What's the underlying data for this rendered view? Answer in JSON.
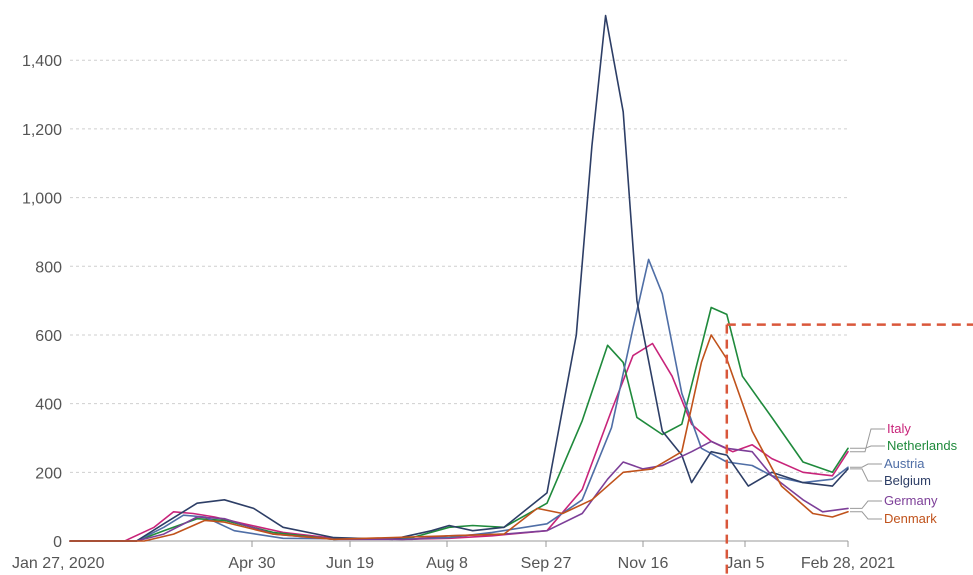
{
  "chart_data": {
    "type": "line",
    "title": "",
    "xlabel": "",
    "ylabel": "",
    "x_ticks": [
      "Jan 27, 2020",
      "Apr 30",
      "Jun 19",
      "Aug 8",
      "Sep 27",
      "Nov 16",
      "Jan 5",
      "Feb 28, 2021"
    ],
    "y_ticks": [
      "0",
      "200",
      "400",
      "600",
      "800",
      "1,000",
      "1,200",
      "1,400"
    ],
    "ylim": [
      0,
      1550
    ],
    "xlim": [
      "2020-01-27",
      "2021-02-28"
    ],
    "grid": true,
    "legend": "right",
    "reference_line": {
      "x": "2020-12-28",
      "y": 630,
      "color": "#d9573b",
      "style": "dashed"
    },
    "series": [
      {
        "name": "Italy",
        "color": "#c8247a",
        "points": [
          [
            "2020-01-27",
            0
          ],
          [
            "2020-02-24",
            0
          ],
          [
            "2020-03-10",
            40
          ],
          [
            "2020-03-20",
            85
          ],
          [
            "2020-03-30",
            80
          ],
          [
            "2020-04-10",
            70
          ],
          [
            "2020-04-25",
            50
          ],
          [
            "2020-05-15",
            25
          ],
          [
            "2020-06-10",
            8
          ],
          [
            "2020-07-15",
            5
          ],
          [
            "2020-08-08",
            8
          ],
          [
            "2020-08-30",
            15
          ],
          [
            "2020-09-27",
            30
          ],
          [
            "2020-10-15",
            150
          ],
          [
            "2020-10-30",
            380
          ],
          [
            "2020-11-10",
            540
          ],
          [
            "2020-11-20",
            575
          ],
          [
            "2020-11-30",
            480
          ],
          [
            "2020-12-10",
            340
          ],
          [
            "2020-12-20",
            290
          ],
          [
            "2020-12-31",
            260
          ],
          [
            "2021-01-10",
            280
          ],
          [
            "2021-01-20",
            240
          ],
          [
            "2021-02-05",
            200
          ],
          [
            "2021-02-20",
            190
          ],
          [
            "2021-02-28",
            260
          ]
        ]
      },
      {
        "name": "Netherlands",
        "color": "#1f8a3c",
        "points": [
          [
            "2020-01-27",
            0
          ],
          [
            "2020-03-01",
            0
          ],
          [
            "2020-03-15",
            30
          ],
          [
            "2020-04-01",
            65
          ],
          [
            "2020-04-15",
            60
          ],
          [
            "2020-05-10",
            25
          ],
          [
            "2020-06-10",
            5
          ],
          [
            "2020-07-20",
            10
          ],
          [
            "2020-08-08",
            40
          ],
          [
            "2020-08-20",
            45
          ],
          [
            "2020-09-05",
            40
          ],
          [
            "2020-09-27",
            110
          ],
          [
            "2020-10-15",
            350
          ],
          [
            "2020-10-28",
            570
          ],
          [
            "2020-11-05",
            520
          ],
          [
            "2020-11-12",
            360
          ],
          [
            "2020-11-25",
            310
          ],
          [
            "2020-12-05",
            340
          ],
          [
            "2020-12-20",
            680
          ],
          [
            "2020-12-28",
            660
          ],
          [
            "2021-01-05",
            480
          ],
          [
            "2021-01-20",
            360
          ],
          [
            "2021-02-05",
            230
          ],
          [
            "2021-02-20",
            200
          ],
          [
            "2021-02-28",
            270
          ]
        ]
      },
      {
        "name": "Austria",
        "color": "#4f6ea6",
        "points": [
          [
            "2020-01-27",
            0
          ],
          [
            "2020-03-01",
            0
          ],
          [
            "2020-03-15",
            40
          ],
          [
            "2020-03-25",
            75
          ],
          [
            "2020-04-05",
            70
          ],
          [
            "2020-04-20",
            30
          ],
          [
            "2020-05-15",
            8
          ],
          [
            "2020-07-15",
            5
          ],
          [
            "2020-08-08",
            10
          ],
          [
            "2020-08-30",
            25
          ],
          [
            "2020-09-27",
            50
          ],
          [
            "2020-10-15",
            120
          ],
          [
            "2020-10-30",
            330
          ],
          [
            "2020-11-10",
            620
          ],
          [
            "2020-11-18",
            820
          ],
          [
            "2020-11-25",
            720
          ],
          [
            "2020-12-05",
            430
          ],
          [
            "2020-12-15",
            270
          ],
          [
            "2020-12-28",
            230
          ],
          [
            "2021-01-10",
            220
          ],
          [
            "2021-01-20",
            190
          ],
          [
            "2021-02-05",
            170
          ],
          [
            "2021-02-20",
            180
          ],
          [
            "2021-02-28",
            215
          ]
        ]
      },
      {
        "name": "Belgium",
        "color": "#2d3e66",
        "points": [
          [
            "2020-01-27",
            0
          ],
          [
            "2020-03-01",
            0
          ],
          [
            "2020-03-15",
            50
          ],
          [
            "2020-04-01",
            110
          ],
          [
            "2020-04-15",
            120
          ],
          [
            "2020-04-30",
            95
          ],
          [
            "2020-05-15",
            40
          ],
          [
            "2020-06-10",
            10
          ],
          [
            "2020-07-10",
            5
          ],
          [
            "2020-07-30",
            30
          ],
          [
            "2020-08-08",
            45
          ],
          [
            "2020-08-20",
            30
          ],
          [
            "2020-09-05",
            40
          ],
          [
            "2020-09-27",
            140
          ],
          [
            "2020-10-12",
            600
          ],
          [
            "2020-10-20",
            1150
          ],
          [
            "2020-10-27",
            1530
          ],
          [
            "2020-11-05",
            1250
          ],
          [
            "2020-11-12",
            700
          ],
          [
            "2020-11-25",
            320
          ],
          [
            "2020-12-05",
            250
          ],
          [
            "2020-12-10",
            170
          ],
          [
            "2020-12-20",
            260
          ],
          [
            "2020-12-28",
            250
          ],
          [
            "2021-01-08",
            160
          ],
          [
            "2021-01-20",
            200
          ],
          [
            "2021-02-05",
            170
          ],
          [
            "2021-02-20",
            160
          ],
          [
            "2021-02-28",
            210
          ]
        ]
      },
      {
        "name": "Germany",
        "color": "#7d3f98",
        "points": [
          [
            "2020-01-27",
            0
          ],
          [
            "2020-03-01",
            0
          ],
          [
            "2020-03-15",
            20
          ],
          [
            "2020-04-01",
            70
          ],
          [
            "2020-04-15",
            65
          ],
          [
            "2020-05-10",
            20
          ],
          [
            "2020-06-10",
            5
          ],
          [
            "2020-07-20",
            5
          ],
          [
            "2020-08-08",
            15
          ],
          [
            "2020-09-05",
            20
          ],
          [
            "2020-09-27",
            30
          ],
          [
            "2020-10-15",
            80
          ],
          [
            "2020-10-28",
            180
          ],
          [
            "2020-11-05",
            230
          ],
          [
            "2020-11-15",
            210
          ],
          [
            "2020-11-25",
            220
          ],
          [
            "2020-12-10",
            260
          ],
          [
            "2020-12-20",
            290
          ],
          [
            "2020-12-28",
            270
          ],
          [
            "2021-01-10",
            260
          ],
          [
            "2021-01-20",
            190
          ],
          [
            "2021-02-05",
            120
          ],
          [
            "2021-02-15",
            85
          ],
          [
            "2021-02-28",
            95
          ]
        ]
      },
      {
        "name": "Denmark",
        "color": "#c0521b",
        "points": [
          [
            "2020-01-27",
            0
          ],
          [
            "2020-03-05",
            0
          ],
          [
            "2020-03-20",
            20
          ],
          [
            "2020-04-05",
            60
          ],
          [
            "2020-04-15",
            55
          ],
          [
            "2020-05-10",
            20
          ],
          [
            "2020-06-10",
            5
          ],
          [
            "2020-08-08",
            15
          ],
          [
            "2020-09-05",
            20
          ],
          [
            "2020-09-22",
            95
          ],
          [
            "2020-10-05",
            80
          ],
          [
            "2020-10-20",
            120
          ],
          [
            "2020-11-05",
            200
          ],
          [
            "2020-11-20",
            210
          ],
          [
            "2020-12-05",
            260
          ],
          [
            "2020-12-15",
            520
          ],
          [
            "2020-12-20",
            600
          ],
          [
            "2020-12-28",
            530
          ],
          [
            "2021-01-10",
            320
          ],
          [
            "2021-01-25",
            160
          ],
          [
            "2021-02-10",
            80
          ],
          [
            "2021-02-20",
            70
          ],
          [
            "2021-02-28",
            85
          ]
        ]
      }
    ]
  }
}
